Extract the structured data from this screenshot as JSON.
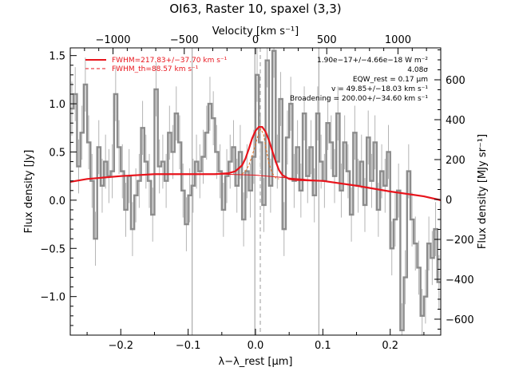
{
  "chart_data": {
    "type": "line",
    "title": "OI63, Raster 10, spaxel (3,3)",
    "xlabel": "λ−λ_rest [μm]",
    "ylabel": "Flux density [Jy]",
    "top_xlabel": "Velocity [km s⁻¹]",
    "right_ylabel": "Flux density [MJy sr⁻¹]",
    "xlim": [
      -0.275,
      0.275
    ],
    "ylim": [
      -1.4,
      1.58
    ],
    "top_xlim": [
      -1300,
      1300
    ],
    "right_ylim": [
      -680,
      760
    ],
    "x_ticks": [
      -0.2,
      -0.1,
      0.0,
      0.1,
      0.2
    ],
    "x_tick_labels": [
      "−0.2",
      "−0.1",
      "0.0",
      "0.1",
      "0.2"
    ],
    "y_ticks": [
      -1.0,
      -0.5,
      0.0,
      0.5,
      1.0,
      1.5
    ],
    "y_tick_labels": [
      "−1.0",
      "−0.5",
      "0.0",
      "0.5",
      "1.0",
      "1.5"
    ],
    "top_ticks": [
      -1000,
      -500,
      0,
      500,
      1000
    ],
    "top_tick_labels": [
      "−1000",
      "−500",
      "0",
      "500",
      "1000"
    ],
    "right_ticks": [
      -600,
      -400,
      -200,
      0,
      200,
      400,
      600
    ],
    "right_tick_labels": [
      "−600",
      "−400",
      "−200",
      "0",
      "200",
      "400",
      "600"
    ],
    "vlines_gray": [
      -0.094,
      -0.001,
      0.094
    ],
    "vline_dashed": 0.0,
    "spectrum": {
      "x": [
        -0.275,
        -0.27,
        -0.265,
        -0.26,
        -0.255,
        -0.25,
        -0.245,
        -0.24,
        -0.235,
        -0.23,
        -0.225,
        -0.22,
        -0.215,
        -0.21,
        -0.205,
        -0.2,
        -0.195,
        -0.19,
        -0.185,
        -0.18,
        -0.175,
        -0.17,
        -0.165,
        -0.16,
        -0.155,
        -0.15,
        -0.145,
        -0.14,
        -0.135,
        -0.13,
        -0.125,
        -0.12,
        -0.115,
        -0.11,
        -0.105,
        -0.1,
        -0.095,
        -0.09,
        -0.085,
        -0.08,
        -0.075,
        -0.07,
        -0.065,
        -0.06,
        -0.055,
        -0.05,
        -0.045,
        -0.04,
        -0.035,
        -0.03,
        -0.025,
        -0.02,
        -0.015,
        -0.01,
        -0.005,
        0.0,
        0.005,
        0.01,
        0.015,
        0.02,
        0.025,
        0.03,
        0.035,
        0.04,
        0.045,
        0.05,
        0.055,
        0.06,
        0.065,
        0.07,
        0.075,
        0.08,
        0.085,
        0.09,
        0.095,
        0.1,
        0.105,
        0.11,
        0.115,
        0.12,
        0.125,
        0.13,
        0.135,
        0.14,
        0.145,
        0.15,
        0.155,
        0.16,
        0.165,
        0.17,
        0.175,
        0.18,
        0.185,
        0.19,
        0.195,
        0.2,
        0.205,
        0.21,
        0.215,
        0.22,
        0.225,
        0.23,
        0.235,
        0.24,
        0.245,
        0.25,
        0.255,
        0.26,
        0.265,
        0.27
      ],
      "y": [
        0.95,
        1.1,
        0.35,
        0.7,
        1.2,
        0.6,
        0.2,
        -0.4,
        0.55,
        0.15,
        0.4,
        0.25,
        0.3,
        1.1,
        0.55,
        0.3,
        -0.1,
        0.25,
        -0.3,
        0.05,
        0.2,
        0.75,
        0.4,
        0.2,
        -0.15,
        1.15,
        0.35,
        0.4,
        0.2,
        0.7,
        0.5,
        0.9,
        0.6,
        0.1,
        -0.25,
        0.05,
        0.15,
        0.4,
        0.3,
        0.45,
        0.7,
        1.0,
        0.85,
        0.5,
        0.3,
        -0.1,
        0.25,
        0.4,
        0.55,
        0.15,
        0.5,
        -0.2,
        0.3,
        0.1,
        0.45,
        1.3,
        0.6,
        -0.05,
        1.45,
        0.15,
        1.55,
        0.4,
        1.05,
        -0.3,
        0.65,
        1.0,
        0.2,
        0.55,
        0.1,
        0.9,
        0.25,
        0.55,
        0.05,
        0.9,
        0.4,
        0.2,
        0.8,
        0.6,
        0.25,
        0.9,
        0.1,
        0.6,
        0.3,
        -0.15,
        0.7,
        0.15,
        0.4,
        -0.05,
        0.65,
        0.2,
        0.6,
        -0.1,
        0.3,
        0.15,
        0.5,
        -0.5,
        -0.2,
        0.1,
        -1.35,
        -0.8,
        0.3,
        -0.2,
        -0.45,
        -0.7,
        -1.2,
        -1.0,
        -0.45,
        -0.6,
        -0.3,
        -0.85
      ],
      "err": 0.28
    },
    "fit_total": {
      "x": [
        -0.275,
        -0.25,
        -0.2,
        -0.15,
        -0.1,
        -0.06,
        -0.04,
        -0.03,
        -0.02,
        -0.015,
        -0.01,
        -0.005,
        0.0,
        0.005,
        0.01,
        0.015,
        0.02,
        0.025,
        0.03,
        0.035,
        0.04,
        0.05,
        0.06,
        0.1,
        0.15,
        0.2,
        0.25,
        0.275
      ],
      "y": [
        0.19,
        0.22,
        0.25,
        0.27,
        0.27,
        0.27,
        0.28,
        0.3,
        0.36,
        0.43,
        0.53,
        0.64,
        0.72,
        0.76,
        0.76,
        0.71,
        0.62,
        0.51,
        0.4,
        0.31,
        0.26,
        0.22,
        0.21,
        0.2,
        0.15,
        0.09,
        0.04,
        0.0
      ]
    },
    "fit_continuum": {
      "x": [
        -0.275,
        -0.25,
        -0.2,
        -0.15,
        -0.1,
        -0.05,
        0.0,
        0.05,
        0.1,
        0.15,
        0.2,
        0.25,
        0.275
      ],
      "y": [
        0.19,
        0.22,
        0.25,
        0.27,
        0.27,
        0.27,
        0.26,
        0.23,
        0.2,
        0.15,
        0.09,
        0.04,
        0.0
      ]
    },
    "fit_instrumental": {
      "x": [
        -0.02,
        -0.015,
        -0.01,
        -0.005,
        0.0,
        0.005,
        0.008,
        0.012,
        0.015,
        0.02,
        0.025,
        0.03,
        0.035
      ],
      "y": [
        0.27,
        0.3,
        0.36,
        0.46,
        0.58,
        0.7,
        0.74,
        0.68,
        0.56,
        0.38,
        0.28,
        0.23,
        0.22
      ]
    },
    "legend": [
      {
        "label": "FWHM=217.83+/−37.70 km s⁻¹",
        "style": "solid"
      },
      {
        "label": "FWHM_th=88.57 km s⁻¹",
        "style": "dashed"
      }
    ],
    "annotations": [
      "1.90e−17+/−4.66e−18 W m⁻²",
      "4.08σ",
      "EQW_rest = 0.17 μm",
      "v = 49.85+/−18.03 km s⁻¹",
      "Broadening = 200.00+/−34.60 km s⁻¹"
    ],
    "colors": {
      "spectrum": "#8c8c8c",
      "errorbar": "#b4b4b4",
      "fit": "#e8141c",
      "instrumental": "#e07020",
      "vline": "#9a9a9a"
    }
  }
}
